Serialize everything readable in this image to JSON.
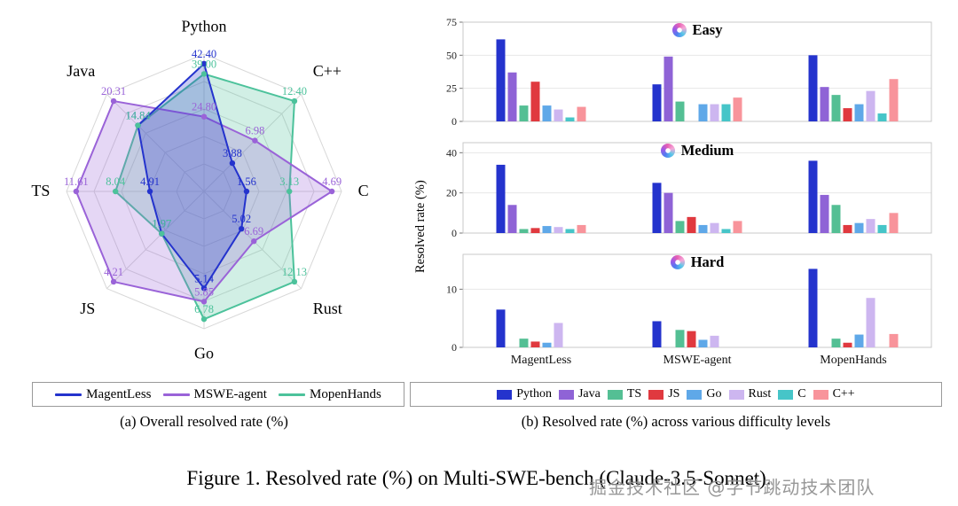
{
  "figure_caption": "Figure 1. Resolved rate (%) on Multi-SWE-bench (Claude-3.5-Sonnet).",
  "watermark": "掘金技术社区 @字节跳动技术团队",
  "chart_data": [
    {
      "type": "radar",
      "title": "(a) Overall resolved rate (%)",
      "axes": [
        "Python",
        "C++",
        "C",
        "Rust",
        "Go",
        "JS",
        "TS",
        "Java"
      ],
      "grid": "on",
      "legend_position": "bottom",
      "series": [
        {
          "name": "MagentLess",
          "color": "#2433cd",
          "values": [
            42.4,
            3.88,
            1.56,
            5.02,
            5.14,
            1.97,
            4.91,
            14.84
          ]
        },
        {
          "name": "MSWE-agent",
          "color": "#9a63d8",
          "values": [
            24.8,
            6.98,
            4.69,
            6.69,
            5.85,
            4.21,
            11.61,
            20.31
          ]
        },
        {
          "name": "MopenHands",
          "color": "#4cc29b",
          "values": [
            39.0,
            12.4,
            3.13,
            12.13,
            6.78,
            1.97,
            8.04,
            14.84
          ]
        }
      ]
    },
    {
      "type": "bar",
      "title": "(b) Resolved rate (%) across various difficulty levels",
      "ylabel": "Resolved rate (%)",
      "categories": [
        "MagentLess",
        "MSWE-agent",
        "MopenHands"
      ],
      "grid": "on",
      "legend_position": "bottom",
      "legend": [
        {
          "name": "Python",
          "color": "#2433cd"
        },
        {
          "name": "Java",
          "color": "#8f63d6"
        },
        {
          "name": "TS",
          "color": "#54bf94"
        },
        {
          "name": "JS",
          "color": "#e0393f"
        },
        {
          "name": "Go",
          "color": "#5fa8e8"
        },
        {
          "name": "Rust",
          "color": "#cdb6f0"
        },
        {
          "name": "C",
          "color": "#46c5c8"
        },
        {
          "name": "C++",
          "color": "#f8949b"
        }
      ],
      "panels": [
        {
          "title": "Easy",
          "ylim": [
            0,
            75
          ],
          "ticks": [
            0,
            25,
            50,
            75
          ],
          "values": [
            [
              62,
              37,
              12,
              30,
              12,
              9,
              3,
              11
            ],
            [
              28,
              49,
              15,
              0,
              13,
              13,
              13,
              18
            ],
            [
              50,
              26,
              20,
              10,
              13,
              23,
              6,
              32
            ]
          ]
        },
        {
          "title": "Medium",
          "ylim": [
            0,
            45
          ],
          "ticks": [
            0,
            20,
            40
          ],
          "values": [
            [
              34,
              14,
              2,
              2.5,
              3.5,
              3,
              2,
              4
            ],
            [
              25,
              20,
              6,
              8,
              4,
              5,
              2,
              6
            ],
            [
              36,
              19,
              14,
              4,
              5,
              7,
              4,
              10
            ]
          ]
        },
        {
          "title": "Hard",
          "ylim": [
            0,
            16
          ],
          "ticks": [
            0,
            10
          ],
          "values": [
            [
              6.5,
              0,
              1.5,
              1,
              0.8,
              4.2,
              0,
              0
            ],
            [
              4.5,
              0,
              3,
              2.8,
              1.3,
              2,
              0,
              0
            ],
            [
              13.5,
              0,
              1.5,
              0.8,
              2.2,
              8.5,
              0,
              2.3
            ]
          ]
        }
      ]
    }
  ]
}
